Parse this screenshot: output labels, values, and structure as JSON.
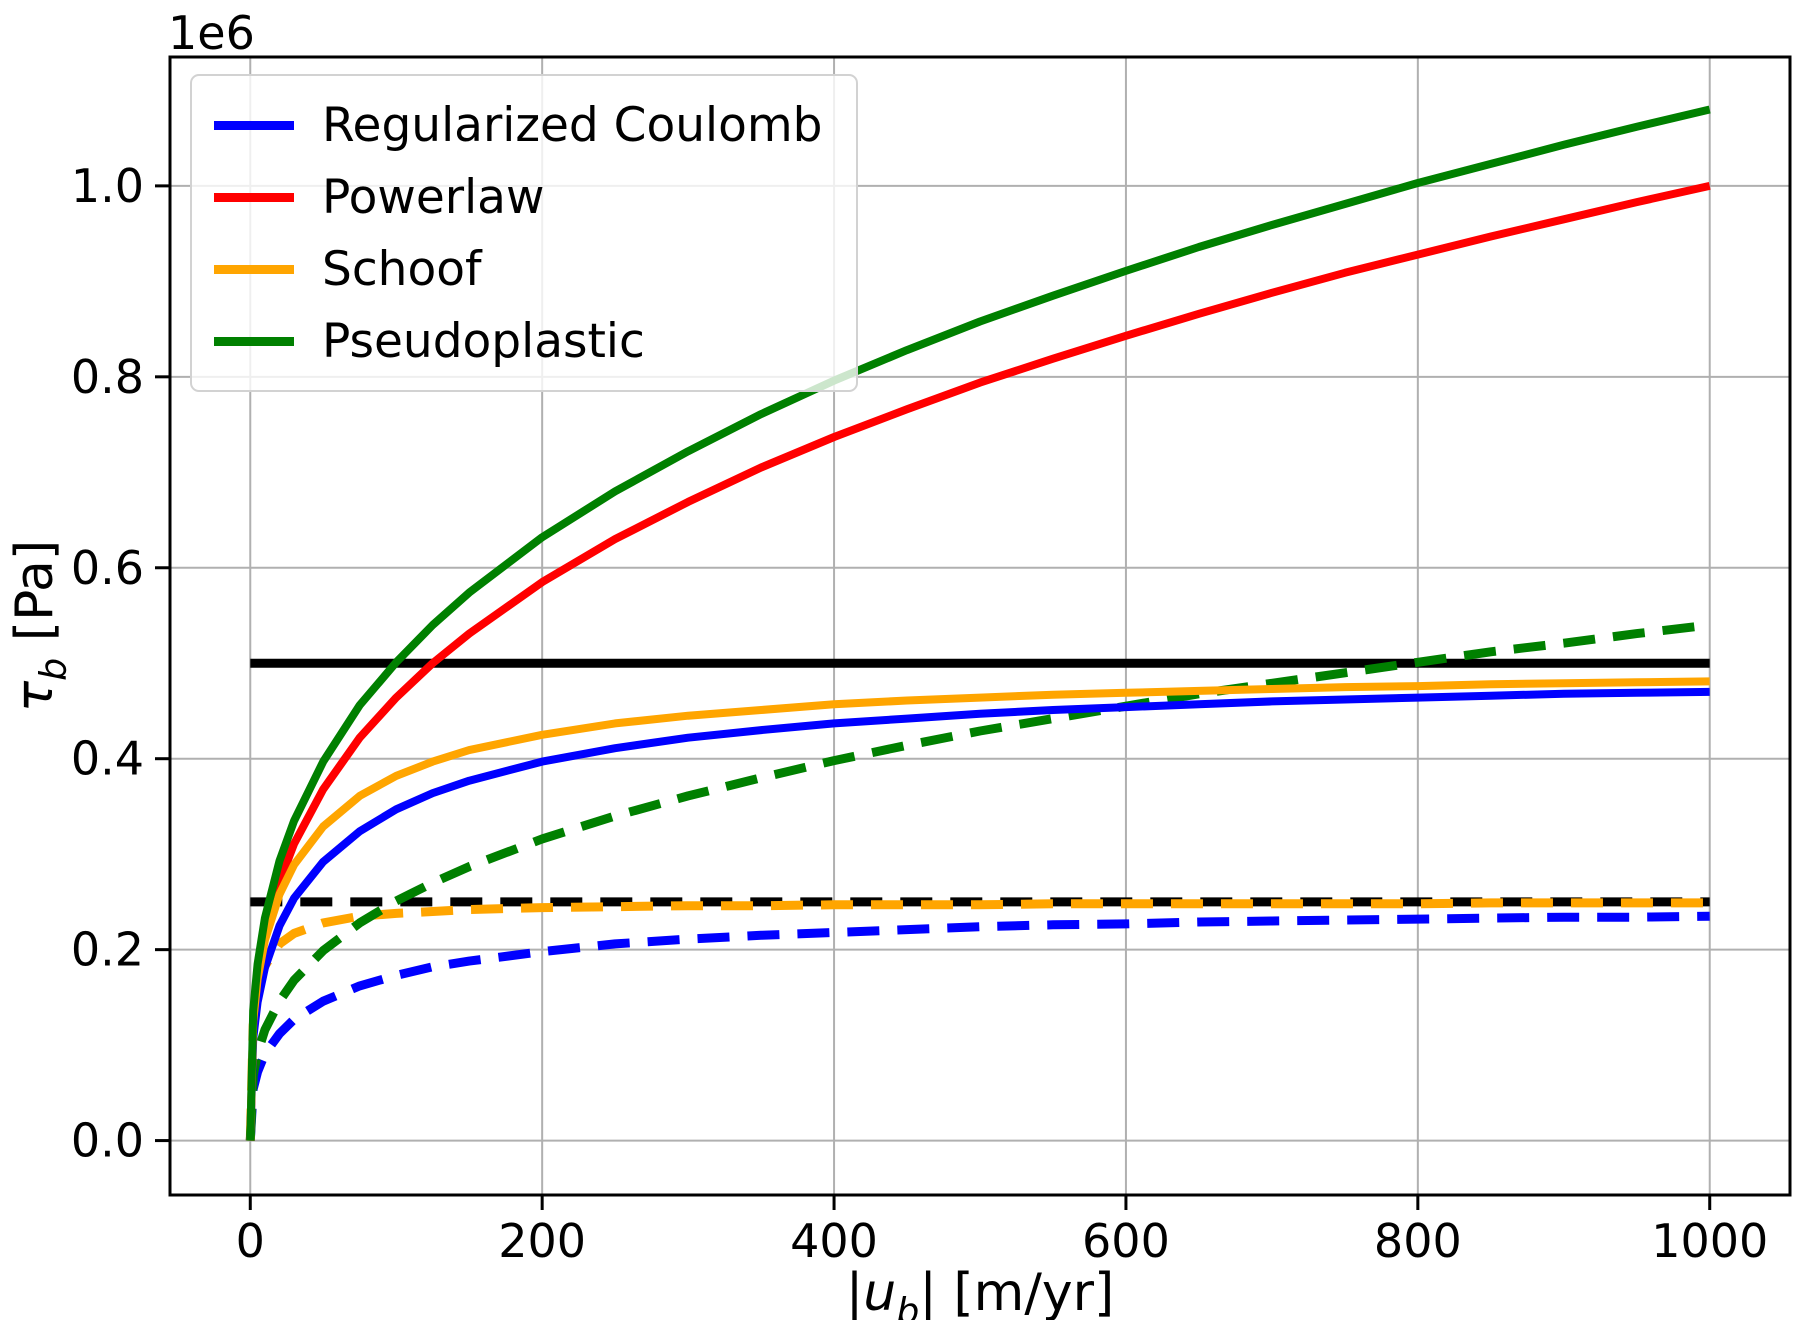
{
  "chart_data": {
    "type": "line",
    "title": "",
    "y_offset_text": "1e6",
    "xlabel": "|u_b| [m/yr]",
    "ylabel": "τ_b [Pa]",
    "xlabel_parts": [
      {
        "t": "|",
        "italic": false
      },
      {
        "t": "u",
        "italic": true
      },
      {
        "t": "b",
        "italic": true,
        "sub": true
      },
      {
        "t": "| [m/yr]",
        "italic": false
      }
    ],
    "ylabel_parts": [
      {
        "t": "τ",
        "italic": true
      },
      {
        "t": "b",
        "italic": true,
        "sub": true
      },
      {
        "t": " [Pa]",
        "italic": false
      }
    ],
    "xlim": [
      -55,
      1055
    ],
    "ylim_1e6": [
      -0.057,
      1.135
    ],
    "x_ticks": [
      {
        "v": 0,
        "label": "0"
      },
      {
        "v": 200,
        "label": "200"
      },
      {
        "v": 400,
        "label": "400"
      },
      {
        "v": 600,
        "label": "600"
      },
      {
        "v": 800,
        "label": "800"
      },
      {
        "v": 1000,
        "label": "1000"
      }
    ],
    "y_ticks": [
      {
        "v": 0.0,
        "label": "0.0"
      },
      {
        "v": 0.2,
        "label": "0.2"
      },
      {
        "v": 0.4,
        "label": "0.4"
      },
      {
        "v": 0.6,
        "label": "0.6"
      },
      {
        "v": 0.8,
        "label": "0.8"
      },
      {
        "v": 1.0,
        "label": "1.0"
      }
    ],
    "grid": true,
    "grid_color": "#b0b0b0",
    "x_common": [
      0,
      2,
      5,
      10,
      20,
      30,
      50,
      75,
      100,
      125,
      150,
      200,
      250,
      300,
      350,
      400,
      450,
      500,
      550,
      600,
      650,
      700,
      750,
      800,
      850,
      900,
      950,
      1000
    ],
    "series": [
      {
        "name": "yield-stress-solid",
        "color": "#000000",
        "style": "solid",
        "width": 9,
        "x": [
          0,
          1000
        ],
        "y_1e6": [
          0.5,
          0.5
        ]
      },
      {
        "name": "yield-stress-dashed",
        "color": "#000000",
        "style": "dashed",
        "width": 9,
        "x": [
          0,
          1000
        ],
        "y_1e6": [
          0.25,
          0.25
        ]
      },
      {
        "name": "regularized-coulomb-dashed",
        "color": "#0000ff",
        "style": "dashed",
        "width": 9,
        "y_1e6": [
          0,
          0.054,
          0.072,
          0.091,
          0.112,
          0.127,
          0.146,
          0.162,
          0.173,
          0.182,
          0.188,
          0.198,
          0.206,
          0.211,
          0.215,
          0.218,
          0.221,
          0.224,
          0.226,
          0.227,
          0.229,
          0.23,
          0.231,
          0.232,
          0.233,
          0.234,
          0.234,
          0.235
        ]
      },
      {
        "name": "schoof-dashed",
        "color": "#ffa500",
        "style": "dashed",
        "width": 9,
        "y_1e6": [
          0,
          0.121,
          0.156,
          0.183,
          0.206,
          0.217,
          0.228,
          0.235,
          0.238,
          0.24,
          0.242,
          0.244,
          0.245,
          0.246,
          0.246,
          0.247,
          0.247,
          0.247,
          0.248,
          0.248,
          0.248,
          0.248,
          0.248,
          0.248,
          0.249,
          0.249,
          0.249,
          0.249
        ]
      },
      {
        "name": "pseudoplastic-dashed",
        "color": "#008000",
        "style": "dashed",
        "width": 9,
        "y_1e6": [
          0,
          0.068,
          0.092,
          0.116,
          0.146,
          0.168,
          0.199,
          0.228,
          0.251,
          0.27,
          0.287,
          0.316,
          0.34,
          0.361,
          0.38,
          0.398,
          0.414,
          0.429,
          0.442,
          0.455,
          0.468,
          0.479,
          0.49,
          0.501,
          0.512,
          0.521,
          0.531,
          0.54
        ]
      },
      {
        "name": "regularized-coulomb",
        "color": "#0000ff",
        "style": "solid",
        "width": 8,
        "y_1e6": [
          0,
          0.107,
          0.145,
          0.181,
          0.225,
          0.254,
          0.292,
          0.324,
          0.347,
          0.364,
          0.377,
          0.397,
          0.411,
          0.422,
          0.43,
          0.437,
          0.442,
          0.447,
          0.451,
          0.454,
          0.457,
          0.46,
          0.462,
          0.464,
          0.466,
          0.468,
          0.469,
          0.47
        ]
      },
      {
        "name": "powerlaw",
        "color": "#ff0000",
        "style": "solid",
        "width": 8,
        "y_1e6": [
          0,
          0.126,
          0.171,
          0.215,
          0.271,
          0.311,
          0.368,
          0.422,
          0.464,
          0.5,
          0.531,
          0.585,
          0.63,
          0.669,
          0.705,
          0.737,
          0.766,
          0.794,
          0.819,
          0.843,
          0.866,
          0.888,
          0.909,
          0.928,
          0.947,
          0.965,
          0.983,
          1.0
        ]
      },
      {
        "name": "schoof",
        "color": "#ffa500",
        "style": "solid",
        "width": 8,
        "y_1e6": [
          0,
          0.125,
          0.169,
          0.21,
          0.258,
          0.289,
          0.329,
          0.361,
          0.382,
          0.397,
          0.409,
          0.425,
          0.437,
          0.445,
          0.451,
          0.457,
          0.461,
          0.464,
          0.467,
          0.469,
          0.471,
          0.473,
          0.475,
          0.476,
          0.478,
          0.479,
          0.48,
          0.481
        ]
      },
      {
        "name": "pseudoplastic",
        "color": "#008000",
        "style": "solid",
        "width": 8,
        "y_1e6": [
          0,
          0.136,
          0.185,
          0.233,
          0.293,
          0.335,
          0.397,
          0.456,
          0.501,
          0.54,
          0.574,
          0.632,
          0.68,
          0.722,
          0.761,
          0.796,
          0.828,
          0.858,
          0.885,
          0.911,
          0.936,
          0.959,
          0.981,
          1.003,
          1.023,
          1.043,
          1.062,
          1.08
        ]
      }
    ],
    "legend": {
      "position": "upper left",
      "entries": [
        {
          "label": "Regularized Coulomb",
          "color": "#0000ff"
        },
        {
          "label": "Powerlaw",
          "color": "#ff0000"
        },
        {
          "label": "Schoof",
          "color": "#ffa500"
        },
        {
          "label": "Pseudoplastic",
          "color": "#008000"
        }
      ]
    }
  }
}
